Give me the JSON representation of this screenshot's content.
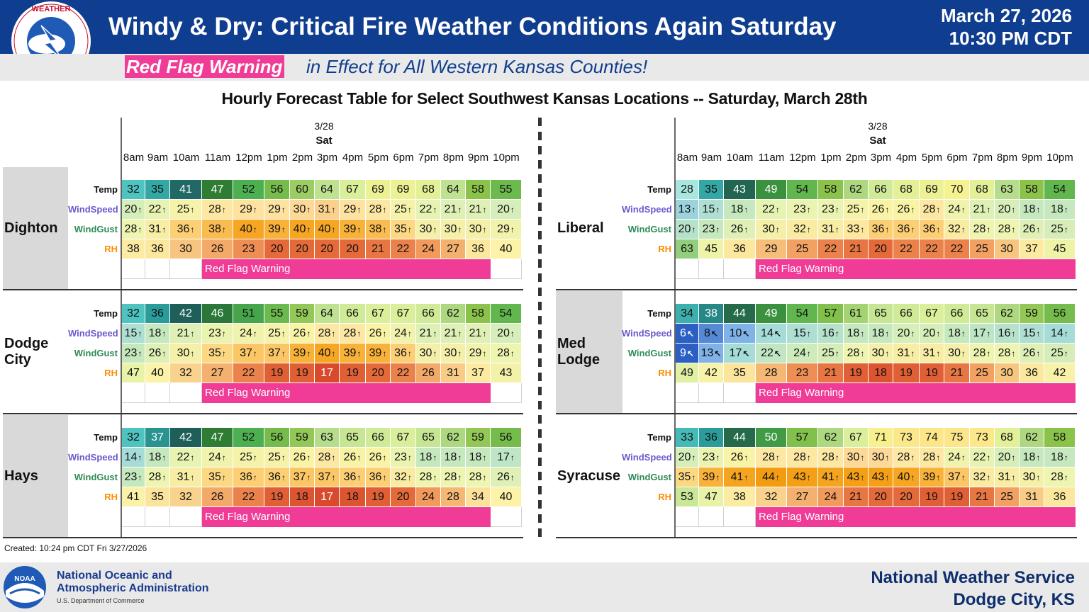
{
  "header": {
    "title": "Windy & Dry:  Critical Fire Weather Conditions Again Saturday",
    "date_line1": "March 27, 2026",
    "date_line2": "10:30 PM CDT",
    "logo_text": "NATIONAL WEATHER SERVICE",
    "subtitle_tag": "Red Flag Warning",
    "subtitle_rest": "in Effect for All Western Kansas Counties!"
  },
  "table_title": "Hourly Forecast Table for Select Southwest Kansas Locations -- Saturday, March 28th",
  "date_label": "3/28",
  "day_label": "Sat",
  "hours": [
    "8am",
    "9am",
    "10am",
    "11am",
    "12pm",
    "1pm",
    "2pm",
    "3pm",
    "4pm",
    "5pm",
    "6pm",
    "7pm",
    "8pm",
    "9pm",
    "10pm"
  ],
  "row_labels": [
    "Temp",
    "WindSpeed",
    "WindGust",
    "RH"
  ],
  "rfw_label": "Red Flag Warning",
  "colors": {
    "rfw": "#f03c96",
    "navy": "#0f3d8f",
    "temp_label": "#111111",
    "wind_label": "#6a5acd",
    "gust_label": "#2e8b57",
    "rh_label": "#ff8c00"
  },
  "locations": [
    {
      "name": "Dighton",
      "temp": [
        32,
        35,
        41,
        47,
        52,
        56,
        60,
        64,
        67,
        69,
        69,
        68,
        64,
        58,
        55
      ],
      "wind": [
        20,
        22,
        25,
        28,
        29,
        29,
        30,
        31,
        29,
        28,
        25,
        22,
        21,
        21,
        20
      ],
      "gust": [
        28,
        31,
        36,
        38,
        40,
        39,
        40,
        40,
        39,
        38,
        35,
        30,
        30,
        30,
        29
      ],
      "rh": [
        38,
        36,
        30,
        26,
        23,
        20,
        20,
        20,
        20,
        21,
        22,
        24,
        27,
        36,
        40
      ],
      "dir": [
        "↑",
        "↑",
        "↑",
        "↑",
        "↑",
        "↑",
        "↑",
        "↑",
        "↑",
        "↑",
        "↑",
        "↑",
        "↑",
        "↑",
        "↑"
      ],
      "rfw": [
        3,
        13
      ]
    },
    {
      "name": "Dodge City",
      "temp": [
        32,
        36,
        42,
        46,
        51,
        55,
        59,
        64,
        66,
        67,
        67,
        66,
        62,
        58,
        54
      ],
      "wind": [
        15,
        18,
        21,
        23,
        24,
        25,
        26,
        28,
        28,
        26,
        24,
        21,
        21,
        21,
        20
      ],
      "gust": [
        23,
        26,
        30,
        35,
        37,
        37,
        39,
        40,
        39,
        39,
        36,
        30,
        30,
        29,
        28
      ],
      "rh": [
        47,
        40,
        32,
        27,
        22,
        19,
        19,
        17,
        19,
        20,
        22,
        26,
        31,
        37,
        43
      ],
      "dir": [
        "↑",
        "↑",
        "↑",
        "↑",
        "↑",
        "↑",
        "↑",
        "↑",
        "↑",
        "↑",
        "↑",
        "↑",
        "↑",
        "↑",
        "↑"
      ],
      "rfw": [
        3,
        13
      ]
    },
    {
      "name": "Hays",
      "temp": [
        32,
        37,
        42,
        47,
        52,
        56,
        59,
        63,
        65,
        66,
        67,
        65,
        62,
        59,
        56
      ],
      "wind": [
        14,
        18,
        22,
        24,
        25,
        25,
        26,
        28,
        26,
        26,
        23,
        18,
        18,
        18,
        17
      ],
      "gust": [
        23,
        28,
        31,
        35,
        36,
        36,
        37,
        37,
        36,
        36,
        32,
        28,
        28,
        28,
        26
      ],
      "rh": [
        41,
        35,
        32,
        26,
        22,
        19,
        18,
        17,
        18,
        19,
        20,
        24,
        28,
        34,
        40
      ],
      "dir": [
        "↑",
        "↑",
        "↑",
        "↑",
        "↑",
        "↑",
        "↑",
        "↑",
        "↑",
        "↑",
        "↑",
        "↑",
        "↑",
        "↑",
        "↑"
      ],
      "rfw": [
        3,
        13
      ]
    },
    {
      "name": "Liberal",
      "temp": [
        28,
        35,
        43,
        49,
        54,
        58,
        62,
        66,
        68,
        69,
        70,
        68,
        63,
        58,
        54
      ],
      "wind": [
        13,
        15,
        18,
        22,
        23,
        23,
        25,
        26,
        26,
        28,
        24,
        21,
        20,
        18,
        18
      ],
      "gust": [
        20,
        23,
        26,
        30,
        32,
        31,
        33,
        36,
        36,
        36,
        32,
        28,
        28,
        26,
        25
      ],
      "rh": [
        63,
        45,
        36,
        29,
        25,
        22,
        21,
        20,
        22,
        22,
        22,
        25,
        30,
        37,
        45
      ],
      "dir": [
        "↑",
        "↑",
        "↑",
        "↑",
        "↑",
        "↑",
        "↑",
        "↑",
        "↑",
        "↑",
        "↑",
        "↑",
        "↑",
        "↑",
        "↑"
      ],
      "rfw": [
        3,
        14
      ]
    },
    {
      "name": "Med Lodge",
      "temp": [
        34,
        38,
        44,
        49,
        54,
        57,
        61,
        65,
        66,
        67,
        66,
        65,
        62,
        59,
        56
      ],
      "wind": [
        6,
        8,
        10,
        14,
        15,
        16,
        18,
        18,
        20,
        20,
        18,
        17,
        16,
        15,
        14
      ],
      "gust": [
        9,
        13,
        17,
        22,
        24,
        25,
        28,
        30,
        31,
        31,
        30,
        28,
        28,
        26,
        25
      ],
      "rh": [
        49,
        42,
        35,
        28,
        23,
        21,
        19,
        18,
        19,
        19,
        21,
        25,
        30,
        36,
        42
      ],
      "dir": [
        "↖",
        "↖",
        "↖",
        "↖",
        "↑",
        "↑",
        "↑",
        "↑",
        "↑",
        "↑",
        "↑",
        "↑",
        "↑",
        "↑",
        "↑"
      ],
      "rfw": [
        3,
        14
      ]
    },
    {
      "name": "Syracuse",
      "temp": [
        33,
        36,
        44,
        50,
        57,
        62,
        67,
        71,
        73,
        74,
        75,
        73,
        68,
        62,
        58
      ],
      "wind": [
        20,
        23,
        26,
        28,
        28,
        28,
        30,
        30,
        28,
        28,
        24,
        22,
        20,
        18,
        18
      ],
      "gust": [
        35,
        39,
        41,
        44,
        43,
        41,
        43,
        43,
        40,
        39,
        37,
        32,
        31,
        30,
        28
      ],
      "rh": [
        53,
        47,
        38,
        32,
        27,
        24,
        21,
        20,
        20,
        19,
        19,
        21,
        25,
        31,
        36
      ],
      "dir": [
        "↑",
        "↑",
        "↑",
        "↑",
        "↑",
        "↑",
        "↑",
        "↑",
        "↑",
        "↑",
        "↑",
        "↑",
        "↑",
        "↑",
        "↑"
      ],
      "rfw": [
        3,
        14
      ]
    }
  ],
  "created": "Created: 10:24 pm CDT Fri 3/27/2026",
  "footer": {
    "noaa_line1": "National Oceanic and",
    "noaa_line2": "Atmospheric Administration",
    "noaa_dept": "U.S. Department of Commerce",
    "noaa_badge": "NOAA",
    "nws_line1": "National Weather Service",
    "nws_line2": "Dodge City, KS"
  }
}
